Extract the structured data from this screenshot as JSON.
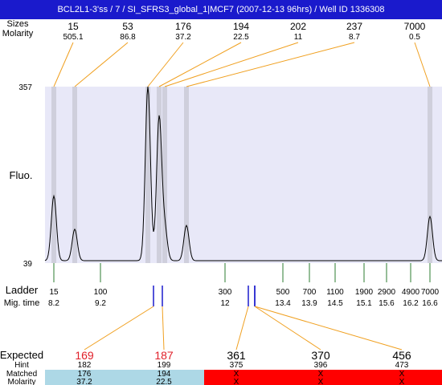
{
  "title": "BCL2L1-3'ss / 7 / SI_SFRS3_global_1|MCF7 (2007-12-13 96hrs) / Well ID 1336308",
  "labels": {
    "sizes": "Sizes",
    "molarity": "Molarity",
    "fluo": "Fluo.",
    "ladder": "Ladder",
    "mig_time": "Mig. time",
    "expected": "Expected",
    "hint": "Hint",
    "matched": "Matched",
    "molarity_bottom": "Molarity"
  },
  "colors": {
    "title_bg": "#1a1acc",
    "plot_bg": "#e8e8f8",
    "peak_band": "#cfcfdc",
    "connector": "#f0a020",
    "ladder_tick": "#2e7d32",
    "marker": "#1a1acc",
    "expected_red": "#e0202a",
    "matched_ok": "#add8e6",
    "matched_fail": "#ff0000"
  },
  "chart_data": {
    "type": "line",
    "title": "",
    "ylabel": "Fluo.",
    "xlabel": "Mig. time",
    "ylim": [
      39,
      357
    ],
    "y_ticks": [
      "357",
      "39"
    ],
    "xlim": [
      7.9,
      16.9
    ],
    "peaks": [
      {
        "size": "15",
        "molarity": "505.1",
        "time": 8.2,
        "height": 160
      },
      {
        "size": "53",
        "molarity": "86.8",
        "time": 8.95,
        "height": 100
      },
      {
        "size": "176",
        "molarity": "37.2",
        "time": 10.52,
        "height": 357
      },
      {
        "size": "194",
        "molarity": "22.5",
        "time": 10.8,
        "height": 300
      },
      {
        "size": "202",
        "molarity": "11",
        "time": 10.95,
        "height": 100
      },
      {
        "size": "237",
        "molarity": "8.7",
        "time": 11.52,
        "height": 107
      },
      {
        "size": "7000",
        "molarity": "0.5",
        "time": 16.6,
        "height": 123
      }
    ],
    "ladder": [
      {
        "size": "15",
        "time": "8.2"
      },
      {
        "size": "100",
        "time": "9.2"
      },
      {
        "size": "300",
        "time": "12"
      },
      {
        "size": "500",
        "time": "13.4"
      },
      {
        "size": "700",
        "time": "13.9"
      },
      {
        "size": "1100",
        "time": "14.5"
      },
      {
        "size": "1900",
        "time": "15.1"
      },
      {
        "size": "2900",
        "time": "15.6"
      },
      {
        "size": "4900",
        "time": "16.2"
      },
      {
        "size": "7000",
        "time": "16.6"
      }
    ],
    "expected": [
      {
        "expected": "169",
        "hint": "182",
        "matched": "176",
        "molarity": "37.2",
        "status": "matched",
        "time": 10.52
      },
      {
        "expected": "187",
        "hint": "199",
        "matched": "194",
        "molarity": "22.5",
        "status": "matched",
        "time": 10.8
      },
      {
        "expected": "361",
        "hint": "375",
        "matched": "X",
        "molarity": "X",
        "status": "unmatched",
        "time": 12.4
      },
      {
        "expected": "370",
        "hint": "396",
        "matched": "X",
        "molarity": "X",
        "status": "unmatched",
        "time": 12.55
      },
      {
        "expected": "456",
        "hint": "473",
        "matched": "X",
        "molarity": "X",
        "status": "unmatched",
        "time": 12.55
      }
    ]
  }
}
